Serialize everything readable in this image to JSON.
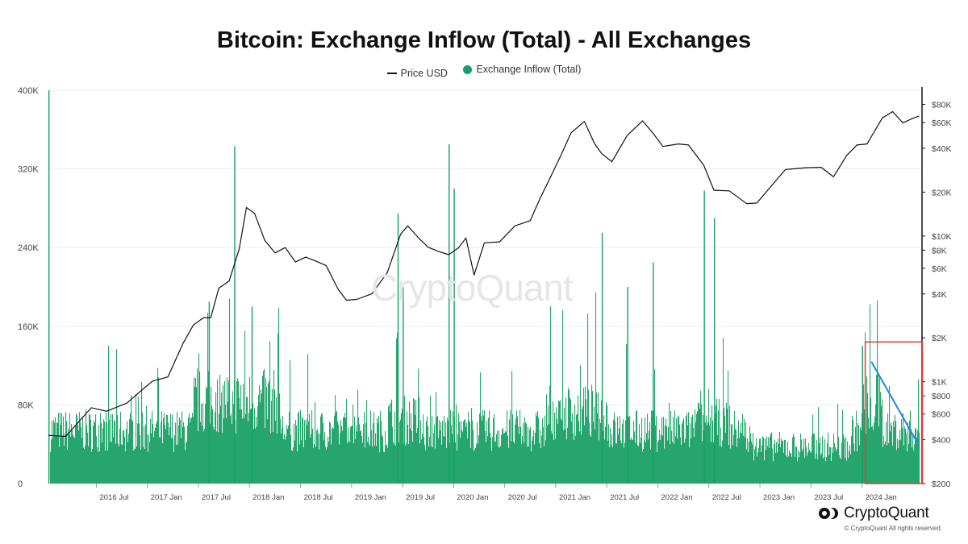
{
  "chart_data": {
    "type": "bar",
    "title": "Bitcoin: Exchange Inflow (Total) - All Exchanges",
    "legend": [
      {
        "name": "Price USD",
        "color": "#111111",
        "kind": "line"
      },
      {
        "name": "Exchange Inflow (Total)",
        "color": "#16a063",
        "kind": "dot"
      }
    ],
    "legend_position": "top-center",
    "x_ticks": [
      "2016 Jul",
      "2017 Jan",
      "2017 Jul",
      "2018 Jan",
      "2018 Jul",
      "2019 Jan",
      "2019 Jul",
      "2020 Jan",
      "2020 Jul",
      "2021 Jan",
      "2021 Jul",
      "2022 Jan",
      "2022 Jul",
      "2023 Jan",
      "2023 Jul",
      "2024 Jan"
    ],
    "x_tick_dates": [
      2016.5,
      2017.0,
      2017.5,
      2018.0,
      2018.5,
      2019.0,
      2019.5,
      2020.0,
      2020.5,
      2021.0,
      2021.5,
      2022.0,
      2022.5,
      2023.0,
      2023.5,
      2024.0
    ],
    "x_range": [
      2016.03,
      2024.58
    ],
    "y_left": {
      "ticks": [
        "0",
        "80K",
        "160K",
        "240K",
        "320K",
        "400K"
      ],
      "tick_values": [
        0,
        80000,
        160000,
        240000,
        320000,
        400000
      ],
      "range": [
        0,
        400000
      ]
    },
    "y_right": {
      "scale": "log",
      "ticks": [
        "$200",
        "$400",
        "$600",
        "$800",
        "$1K",
        "$2K",
        "$4K",
        "$6K",
        "$8K",
        "$10K",
        "$20K",
        "$40K",
        "$60K",
        "$80K"
      ],
      "tick_values": [
        200,
        400,
        600,
        800,
        1000,
        2000,
        4000,
        6000,
        8000,
        10000,
        20000,
        40000,
        60000,
        80000
      ],
      "range": [
        200,
        100000
      ]
    },
    "grid": true,
    "series": [
      {
        "name": "Price USD",
        "type": "line",
        "color": "#111111",
        "dates": [
          2016.03,
          2016.2,
          2016.45,
          2016.6,
          2016.8,
          2016.95,
          2017.05,
          2017.2,
          2017.35,
          2017.45,
          2017.55,
          2017.62,
          2017.7,
          2017.8,
          2017.9,
          2017.97,
          2018.05,
          2018.15,
          2018.25,
          2018.35,
          2018.45,
          2018.55,
          2018.65,
          2018.75,
          2018.87,
          2018.95,
          2019.05,
          2019.2,
          2019.35,
          2019.48,
          2019.55,
          2019.65,
          2019.75,
          2019.85,
          2019.95,
          2020.05,
          2020.12,
          2020.2,
          2020.3,
          2020.45,
          2020.6,
          2020.75,
          2020.85,
          2020.95,
          2021.05,
          2021.15,
          2021.28,
          2021.38,
          2021.45,
          2021.55,
          2021.7,
          2021.85,
          2021.95,
          2022.05,
          2022.2,
          2022.3,
          2022.45,
          2022.55,
          2022.7,
          2022.87,
          2022.97,
          2023.1,
          2023.25,
          2023.45,
          2023.6,
          2023.72,
          2023.85,
          2023.95,
          2024.05,
          2024.2,
          2024.3,
          2024.4,
          2024.5,
          2024.56
        ],
        "values": [
          420,
          430,
          650,
          640,
          700,
          900,
          990,
          1100,
          1800,
          2500,
          2700,
          2800,
          4300,
          5000,
          8000,
          16000,
          14000,
          9500,
          7500,
          8500,
          6500,
          7300,
          6600,
          6400,
          4200,
          3700,
          3600,
          4100,
          5500,
          10500,
          11500,
          10000,
          8200,
          8000,
          7300,
          8500,
          9500,
          5500,
          8800,
          9300,
          11500,
          13000,
          18000,
          26000,
          35000,
          52000,
          60000,
          44000,
          36000,
          33000,
          48000,
          63000,
          50000,
          42000,
          42000,
          43000,
          30000,
          21000,
          20000,
          17000,
          16500,
          22000,
          28000,
          30000,
          29000,
          26000,
          35000,
          43000,
          42000,
          66000,
          70000,
          61000,
          63000,
          68000
        ]
      },
      {
        "name": "Exchange Inflow (Total)",
        "type": "bar",
        "color": "#16a063",
        "baseline_level": 58000,
        "notable_values": [
          {
            "date": 2016.03,
            "value": 400000
          },
          {
            "date": 2017.85,
            "value": 343000
          },
          {
            "date": 2018.02,
            "value": 180000
          },
          {
            "date": 2017.6,
            "value": 185000
          },
          {
            "date": 2019.45,
            "value": 275000
          },
          {
            "date": 2019.5,
            "value": 200000
          },
          {
            "date": 2019.95,
            "value": 345000
          },
          {
            "date": 2020.0,
            "value": 300000
          },
          {
            "date": 2021.45,
            "value": 255000
          },
          {
            "date": 2021.7,
            "value": 200000
          },
          {
            "date": 2022.45,
            "value": 298000
          },
          {
            "date": 2022.55,
            "value": 270000
          },
          {
            "date": 2021.95,
            "value": 225000
          },
          {
            "date": 2024.0,
            "value": 140000
          }
        ]
      }
    ],
    "annotations": [
      {
        "type": "rectangle",
        "color": "#e53935",
        "x_range": [
          2024.0,
          2024.56
        ],
        "y_range": [
          0,
          144000
        ]
      },
      {
        "type": "trend-line",
        "color": "#1e88e5",
        "from": {
          "date": 2024.06,
          "value": 124000
        },
        "to": {
          "date": 2024.53,
          "value": 38000
        }
      }
    ]
  },
  "brand": {
    "name": "CryptoQuant",
    "copyright": "© CryptoQuant All rights reserved."
  }
}
